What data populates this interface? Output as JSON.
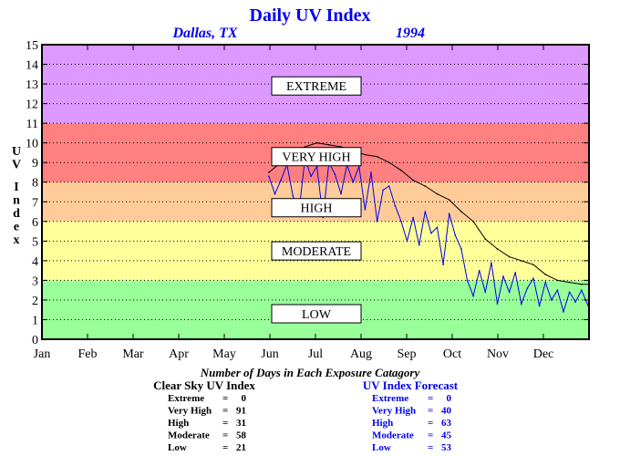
{
  "chart_data": {
    "type": "line",
    "title": "Daily UV Index",
    "location": "Dallas, TX",
    "year": "1994",
    "ylabel": "UV Index",
    "ylim": [
      0,
      15
    ],
    "yticks": [
      "0",
      "1",
      "2",
      "3",
      "4",
      "5",
      "6",
      "7",
      "8",
      "9",
      "10",
      "11",
      "12",
      "13",
      "14",
      "15"
    ],
    "months": [
      "Jan",
      "Feb",
      "Mar",
      "Apr",
      "May",
      "Jun",
      "Jul",
      "Aug",
      "Sep",
      "Oct",
      "Nov",
      "Dec"
    ],
    "xlim": [
      1,
      365
    ],
    "grid": true,
    "bands": [
      {
        "label": "LOW",
        "from": 0,
        "to": 3,
        "color": "#99ff99",
        "label_y": 1.3
      },
      {
        "label": "MODERATE",
        "from": 3,
        "to": 6,
        "color": "#ffff99",
        "label_y": 4.5
      },
      {
        "label": "HIGH",
        "from": 6,
        "to": 8,
        "color": "#ffcc99",
        "label_y": 6.7
      },
      {
        "label": "VERY HIGH",
        "from": 8,
        "to": 11,
        "color": "#ff8080",
        "label_y": 9.3
      },
      {
        "label": "EXTREME",
        "from": 11,
        "to": 15,
        "color": "#dd99ff",
        "label_y": 12.9
      }
    ],
    "series": [
      {
        "name": "Clear Sky UV Index",
        "color": "#000000",
        "x": [
          152,
          160,
          168,
          176,
          184,
          192,
          200,
          208,
          216,
          224,
          232,
          240,
          248,
          256,
          264,
          272,
          280,
          288,
          296,
          304,
          312,
          320,
          328,
          336,
          344,
          352,
          360,
          365
        ],
        "y": [
          8.5,
          9.0,
          9.5,
          9.8,
          10.0,
          9.9,
          9.8,
          9.6,
          9.4,
          9.3,
          9.0,
          8.6,
          8.1,
          7.8,
          7.4,
          7.1,
          6.5,
          6.0,
          5.1,
          4.6,
          4.2,
          4.0,
          3.8,
          3.3,
          3.0,
          2.9,
          2.8,
          2.8
        ]
      },
      {
        "name": "UV Index Forecast",
        "color": "#0000ee",
        "x": [
          152,
          156,
          160,
          164,
          168,
          172,
          176,
          180,
          184,
          188,
          192,
          196,
          200,
          204,
          208,
          212,
          216,
          220,
          224,
          228,
          232,
          236,
          240,
          244,
          248,
          252,
          256,
          260,
          264,
          268,
          272,
          276,
          280,
          284,
          288,
          292,
          296,
          300,
          304,
          308,
          312,
          316,
          320,
          324,
          328,
          332,
          336,
          340,
          344,
          348,
          352,
          356,
          360,
          365
        ],
        "y": [
          8.3,
          7.4,
          8.1,
          8.9,
          7.3,
          6.5,
          9.2,
          8.3,
          8.8,
          6.2,
          9.0,
          8.4,
          7.4,
          8.9,
          8.0,
          8.8,
          6.6,
          8.5,
          6.0,
          7.6,
          7.8,
          6.8,
          6.0,
          5.0,
          6.2,
          4.8,
          6.5,
          5.4,
          5.7,
          3.8,
          6.4,
          5.3,
          4.6,
          3.0,
          2.2,
          3.5,
          2.4,
          3.9,
          1.8,
          3.2,
          2.4,
          3.4,
          1.8,
          2.6,
          3.1,
          1.7,
          2.9,
          2.0,
          2.5,
          1.4,
          2.4,
          1.9,
          2.5,
          1.6
        ]
      }
    ]
  },
  "counts": {
    "title": "Number of Days in Each Exposure Catagory",
    "clear_sky": {
      "title": "Clear Sky UV Index",
      "color": "#000000",
      "rows": [
        {
          "label": "Extreme",
          "value": "0"
        },
        {
          "label": "Very High",
          "value": "91"
        },
        {
          "label": "High",
          "value": "31"
        },
        {
          "label": "Moderate",
          "value": "58"
        },
        {
          "label": "Low",
          "value": "21"
        }
      ]
    },
    "forecast": {
      "title": "UV Index Forecast",
      "color": "#0000ee",
      "rows": [
        {
          "label": "Extreme",
          "value": "0"
        },
        {
          "label": "Very High",
          "value": "40"
        },
        {
          "label": "High",
          "value": "63"
        },
        {
          "label": "Moderate",
          "value": "45"
        },
        {
          "label": "Low",
          "value": "53"
        }
      ]
    }
  }
}
